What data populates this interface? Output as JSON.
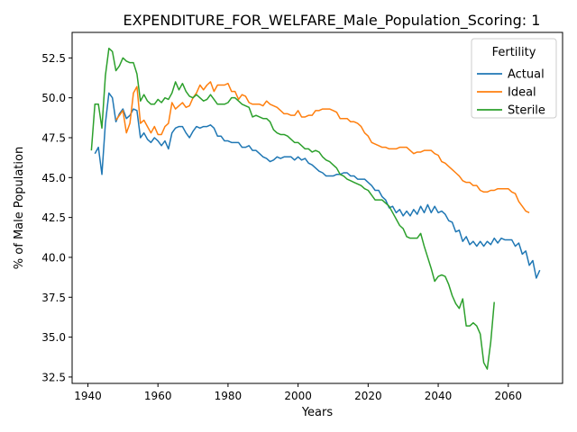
{
  "chart_data": {
    "type": "line",
    "title": "EXPENDITURE_FOR_WELFARE_Male_Population_Scoring: 1",
    "xlabel": "Years",
    "ylabel": "% of Male Population",
    "xlim": [
      1935.5,
      2075.5
    ],
    "ylim": [
      32.1,
      54.1
    ],
    "xticks": [
      1940,
      1960,
      1980,
      2000,
      2020,
      2040,
      2060
    ],
    "yticks": [
      32.5,
      35.0,
      37.5,
      40.0,
      42.5,
      45.0,
      47.5,
      50.0,
      52.5
    ],
    "xtick_labels": [
      "1940",
      "1960",
      "1980",
      "2000",
      "2020",
      "2040",
      "2060"
    ],
    "ytick_labels": [
      "32.5",
      "35.0",
      "37.5",
      "40.0",
      "42.5",
      "45.0",
      "47.5",
      "50.0",
      "52.5"
    ],
    "grid": false,
    "legend": {
      "title": "Fertility",
      "placement": "top-right"
    },
    "series": [
      {
        "name": "Actual",
        "color": "#1f77b4",
        "x_start": 1942,
        "values": [
          46.5,
          46.9,
          45.2,
          48.4,
          50.3,
          50.0,
          48.5,
          49.0,
          49.3,
          48.7,
          48.9,
          49.3,
          49.2,
          47.5,
          47.8,
          47.4,
          47.2,
          47.5,
          47.3,
          47.0,
          47.3,
          46.8,
          47.8,
          48.1,
          48.2,
          48.2,
          47.8,
          47.5,
          47.9,
          48.2,
          48.1,
          48.2,
          48.2,
          48.3,
          48.1,
          47.6,
          47.6,
          47.3,
          47.3,
          47.2,
          47.2,
          47.2,
          46.9,
          46.9,
          47.0,
          46.7,
          46.7,
          46.5,
          46.3,
          46.2,
          46.0,
          46.1,
          46.3,
          46.2,
          46.3,
          46.3,
          46.3,
          46.1,
          46.3,
          46.1,
          46.2,
          45.9,
          45.8,
          45.6,
          45.4,
          45.3,
          45.1,
          45.1,
          45.1,
          45.2,
          45.2,
          45.3,
          45.3,
          45.1,
          45.1,
          44.9,
          44.9,
          44.9,
          44.7,
          44.5,
          44.2,
          44.2,
          43.8,
          43.6,
          43.1,
          43.2,
          42.8,
          43.0,
          42.6,
          42.9,
          42.6,
          43.0,
          42.7,
          43.2,
          42.8,
          43.3,
          42.8,
          43.2,
          42.8,
          42.9,
          42.7,
          42.3,
          42.2,
          41.6,
          41.7,
          41.0,
          41.3,
          40.8,
          41.0,
          40.7,
          41.0,
          40.7,
          41.0,
          40.8,
          41.2,
          40.9,
          41.2,
          41.1,
          41.1,
          41.1,
          40.7,
          40.9,
          40.2,
          40.4,
          39.5,
          39.8,
          38.7,
          39.2
        ]
      },
      {
        "name": "Ideal",
        "color": "#ff7f0e",
        "x_start": 1948,
        "values": [
          48.6,
          48.9,
          49.2,
          47.8,
          48.4,
          50.3,
          50.7,
          48.4,
          48.6,
          48.2,
          47.8,
          48.2,
          47.7,
          47.7,
          48.2,
          48.4,
          49.7,
          49.3,
          49.5,
          49.7,
          49.4,
          49.5,
          50.0,
          50.3,
          50.8,
          50.5,
          50.8,
          51.0,
          50.4,
          50.8,
          50.8,
          50.8,
          50.9,
          50.4,
          50.4,
          49.9,
          50.2,
          50.1,
          49.7,
          49.6,
          49.6,
          49.6,
          49.5,
          49.8,
          49.6,
          49.5,
          49.4,
          49.2,
          49.0,
          49.0,
          48.9,
          48.9,
          49.2,
          48.8,
          48.8,
          48.9,
          48.9,
          49.2,
          49.2,
          49.3,
          49.3,
          49.3,
          49.2,
          49.1,
          48.7,
          48.7,
          48.7,
          48.5,
          48.5,
          48.4,
          48.2,
          47.8,
          47.6,
          47.2,
          47.1,
          47.0,
          46.9,
          46.9,
          46.8,
          46.8,
          46.8,
          46.9,
          46.9,
          46.9,
          46.7,
          46.5,
          46.6,
          46.6,
          46.7,
          46.7,
          46.7,
          46.5,
          46.4,
          46.0,
          45.9,
          45.7,
          45.5,
          45.3,
          45.1,
          44.8,
          44.7,
          44.7,
          44.5,
          44.5,
          44.2,
          44.1,
          44.1,
          44.2,
          44.2,
          44.3,
          44.3,
          44.3,
          44.3,
          44.1,
          44.0,
          43.5,
          43.2,
          42.9,
          42.8
        ]
      },
      {
        "name": "Sterile",
        "color": "#2ca02c",
        "x_start": 1941,
        "values": [
          46.7,
          49.6,
          49.6,
          48.1,
          51.4,
          53.1,
          52.9,
          51.7,
          52.0,
          52.5,
          52.3,
          52.2,
          52.2,
          51.5,
          49.8,
          50.2,
          49.8,
          49.6,
          49.6,
          49.9,
          49.7,
          50.0,
          49.9,
          50.3,
          51.0,
          50.5,
          50.9,
          50.4,
          50.1,
          50.0,
          50.2,
          50.0,
          49.8,
          49.9,
          50.2,
          49.9,
          49.6,
          49.6,
          49.6,
          49.7,
          50.0,
          50.0,
          49.8,
          49.6,
          49.5,
          49.4,
          48.8,
          48.9,
          48.8,
          48.7,
          48.7,
          48.5,
          48.0,
          47.8,
          47.7,
          47.7,
          47.6,
          47.4,
          47.2,
          47.2,
          47.0,
          46.8,
          46.8,
          46.6,
          46.7,
          46.6,
          46.3,
          46.1,
          46.0,
          45.8,
          45.6,
          45.2,
          45.1,
          44.9,
          44.8,
          44.7,
          44.6,
          44.5,
          44.3,
          44.2,
          43.9,
          43.6,
          43.6,
          43.6,
          43.4,
          43.2,
          42.8,
          42.4,
          42.0,
          41.8,
          41.3,
          41.2,
          41.2,
          41.2,
          41.5,
          40.7,
          40.0,
          39.3,
          38.5,
          38.8,
          38.9,
          38.8,
          38.3,
          37.6,
          37.1,
          36.8,
          37.4,
          35.7,
          35.7,
          35.9,
          35.7,
          35.2,
          33.4,
          33.0,
          34.7,
          37.2
        ]
      }
    ]
  }
}
